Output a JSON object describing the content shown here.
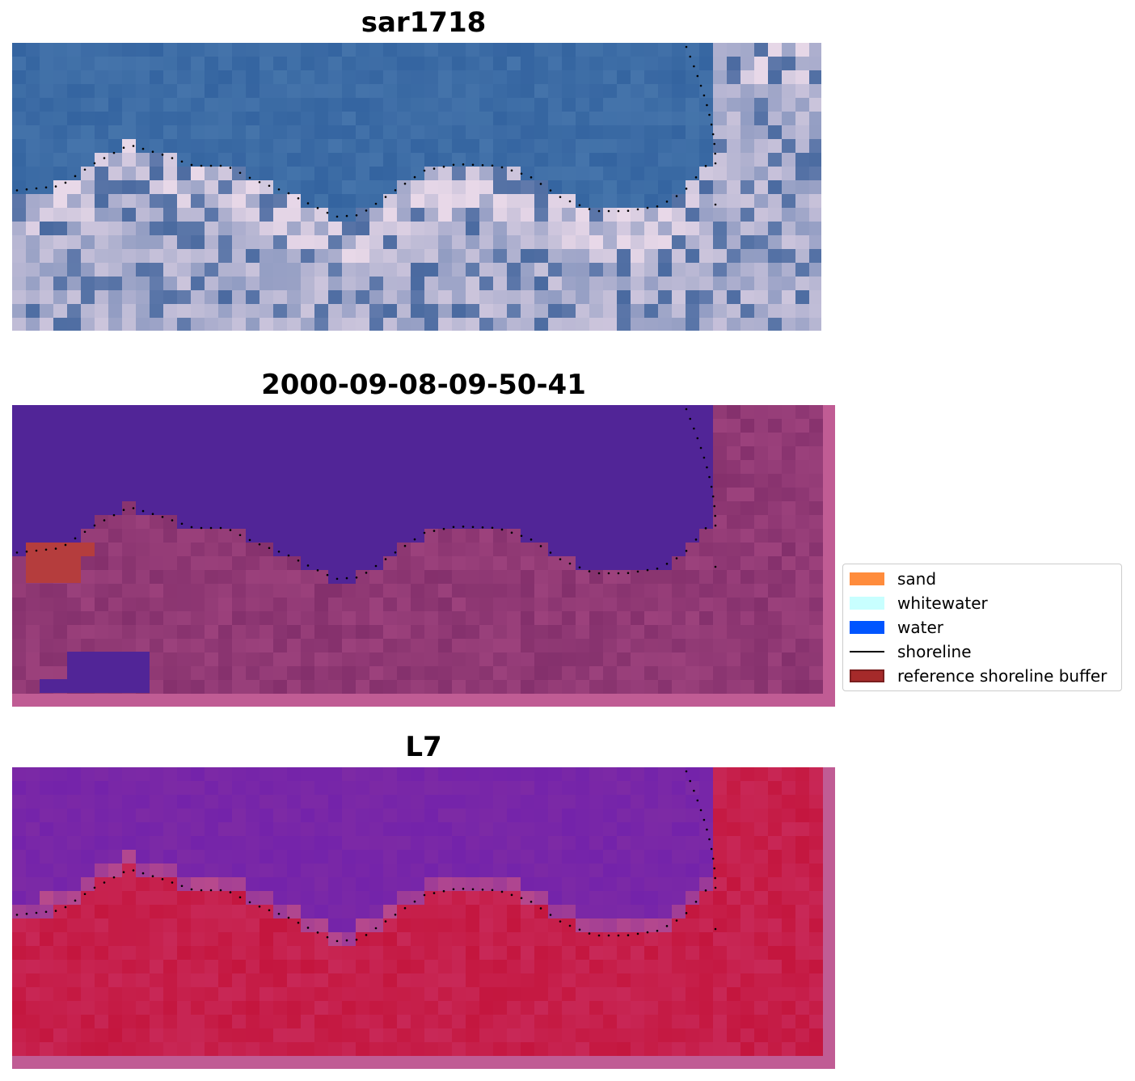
{
  "panels": [
    {
      "title": "sar1718",
      "kind": "rgb"
    },
    {
      "title": "2000-09-08-09-50-41",
      "kind": "classified"
    },
    {
      "title": "L7",
      "kind": "ndwi"
    }
  ],
  "legend": {
    "items": [
      {
        "label": "sand",
        "color": "#ff8c3c",
        "type": "patch"
      },
      {
        "label": "whitewater",
        "color": "#c8ffff",
        "type": "patch"
      },
      {
        "label": "water",
        "color": "#0055ff",
        "type": "patch"
      },
      {
        "label": "shoreline",
        "color": "#000000",
        "type": "line"
      },
      {
        "label": "reference shoreline buffer",
        "color": "#a52a2a",
        "type": "patch"
      }
    ]
  },
  "colors": {
    "rgb_water": "#3464a0",
    "rgb_land": "#7a8cb8",
    "class_water": "#512597",
    "class_land": "#84306c",
    "class_frame": "#c05c94",
    "buffer": "#b53d3d",
    "ndwi_water": "#7d2aa5",
    "ndwi_land": "#c4163e"
  }
}
